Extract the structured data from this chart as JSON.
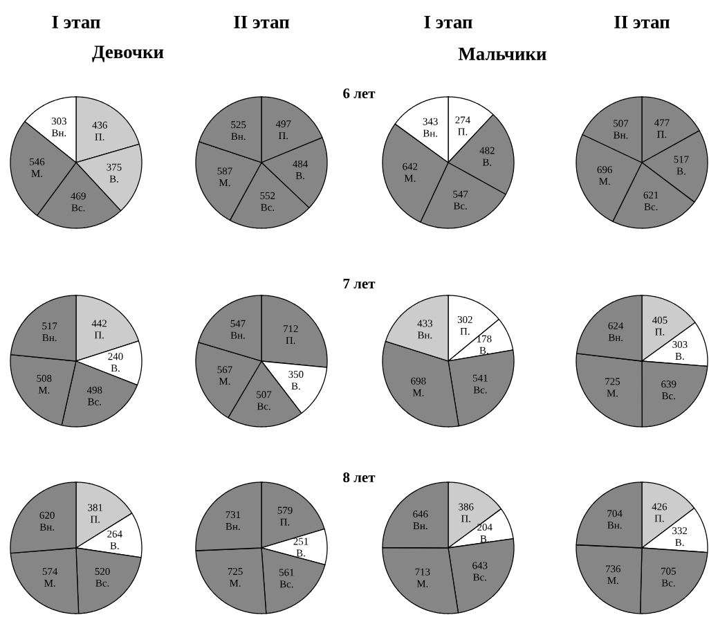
{
  "chart_data": [
    {
      "type": "pie",
      "title": "I этап",
      "subtitle": "Девочки",
      "annotations": [
        "6 лет"
      ],
      "categories": [
        "П.",
        "В.",
        "Вс.",
        "М.",
        "Вн."
      ],
      "values": [
        436,
        375,
        469,
        546,
        303
      ],
      "colors": [
        "#cccccc",
        "#cccccc",
        "#868686",
        "#868686",
        "#ffffff"
      ],
      "data_labels": true
    },
    {
      "type": "pie",
      "title": "II этап",
      "categories": [
        "П.",
        "В.",
        "Вс.",
        "М.",
        "Вн."
      ],
      "values": [
        497,
        484,
        552,
        587,
        525
      ],
      "colors": [
        "#868686",
        "#868686",
        "#868686",
        "#868686",
        "#868686"
      ],
      "data_labels": true
    },
    {
      "type": "pie",
      "title": "I этап",
      "subtitle": "Мальчики",
      "categories": [
        "П.",
        "В.",
        "Вс.",
        "М.",
        "Вн."
      ],
      "values": [
        274,
        482,
        547,
        642,
        343
      ],
      "colors": [
        "#ffffff",
        "#868686",
        "#868686",
        "#868686",
        "#ffffff"
      ],
      "data_labels": true
    },
    {
      "type": "pie",
      "title": "II этап",
      "categories": [
        "П.",
        "В.",
        "Вс.",
        "М.",
        "Вн."
      ],
      "values": [
        477,
        517,
        621,
        696,
        507
      ],
      "colors": [
        "#868686",
        "#868686",
        "#868686",
        "#868686",
        "#868686"
      ],
      "data_labels": true
    },
    {
      "type": "pie",
      "annotations": [
        "7 лет"
      ],
      "categories": [
        "П.",
        "В.",
        "Вс.",
        "М.",
        "Вн."
      ],
      "values": [
        442,
        240,
        498,
        508,
        517
      ],
      "colors": [
        "#cccccc",
        "#ffffff",
        "#868686",
        "#868686",
        "#868686"
      ],
      "data_labels": true
    },
    {
      "type": "pie",
      "categories": [
        "П.",
        "В.",
        "Вс.",
        "М.",
        "Вн."
      ],
      "values": [
        712,
        350,
        507,
        567,
        547
      ],
      "colors": [
        "#868686",
        "#ffffff",
        "#868686",
        "#868686",
        "#868686"
      ],
      "data_labels": true
    },
    {
      "type": "pie",
      "categories": [
        "П.",
        "В.",
        "Вс.",
        "М.",
        "Вн."
      ],
      "values": [
        302,
        178,
        541,
        698,
        433
      ],
      "colors": [
        "#ffffff",
        "#ffffff",
        "#868686",
        "#868686",
        "#cccccc"
      ],
      "data_labels": true
    },
    {
      "type": "pie",
      "categories": [
        "П.",
        "В.",
        "Вс.",
        "М.",
        "Вн."
      ],
      "values": [
        405,
        303,
        639,
        725,
        624
      ],
      "colors": [
        "#cccccc",
        "#ffffff",
        "#868686",
        "#868686",
        "#868686"
      ],
      "data_labels": true
    },
    {
      "type": "pie",
      "annotations": [
        "8 лет"
      ],
      "categories": [
        "П.",
        "В.",
        "Вс.",
        "М.",
        "Вн."
      ],
      "values": [
        381,
        264,
        520,
        574,
        620
      ],
      "colors": [
        "#cccccc",
        "#ffffff",
        "#868686",
        "#868686",
        "#868686"
      ],
      "data_labels": true
    },
    {
      "type": "pie",
      "categories": [
        "П.",
        "В.",
        "Вс.",
        "М.",
        "Вн."
      ],
      "values": [
        579,
        251,
        561,
        725,
        731
      ],
      "colors": [
        "#868686",
        "#ffffff",
        "#868686",
        "#868686",
        "#868686"
      ],
      "data_labels": true
    },
    {
      "type": "pie",
      "categories": [
        "П.",
        "В.",
        "Вс.",
        "М.",
        "Вн."
      ],
      "values": [
        386,
        204,
        643,
        713,
        646
      ],
      "colors": [
        "#cccccc",
        "#ffffff",
        "#868686",
        "#868686",
        "#868686"
      ],
      "data_labels": true
    },
    {
      "type": "pie",
      "categories": [
        "П.",
        "В.",
        "Вс.",
        "М.",
        "Вн."
      ],
      "values": [
        426,
        332,
        705,
        736,
        704
      ],
      "colors": [
        "#cccccc",
        "#ffffff",
        "#868686",
        "#868686",
        "#868686"
      ],
      "data_labels": true
    }
  ]
}
